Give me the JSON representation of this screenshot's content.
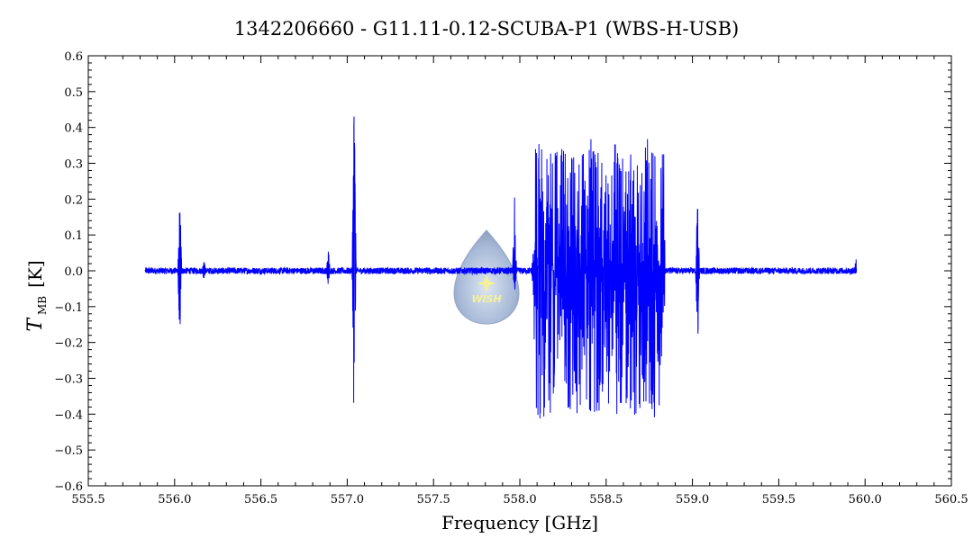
{
  "chart_data": {
    "type": "line",
    "title": "1342206660 - G11.11-0.12-SCUBA-P1 (WBS-H-USB)",
    "xlabel": "Frequency [GHz]",
    "ylabel_main": "T",
    "ylabel_sub": "MB",
    "ylabel_unit": "[K]",
    "xlim": [
      555.5,
      560.5
    ],
    "ylim": [
      -0.6,
      0.6
    ],
    "x_ticks": [
      "555.5",
      "556.0",
      "556.5",
      "557.0",
      "557.5",
      "558.0",
      "558.5",
      "559.0",
      "559.5",
      "560.0",
      "560.5"
    ],
    "y_ticks": [
      "0.6",
      "0.5",
      "0.4",
      "0.3",
      "0.2",
      "0.1",
      "0.0",
      "-0.1",
      "-0.2",
      "-0.3",
      "-0.4",
      "-0.5",
      "-0.6"
    ],
    "grid": false,
    "series_color": "#0000ff",
    "series": [
      {
        "x_range": [
          555.83,
          559.95
        ],
        "baseline": 0.0,
        "features": [
          {
            "center": 556.03,
            "min": -0.19,
            "max": 0.23
          },
          {
            "center": 556.17,
            "min": -0.03,
            "max": 0.03
          },
          {
            "center": 556.89,
            "min": -0.04,
            "max": 0.07
          },
          {
            "center": 557.04,
            "min": -0.49,
            "max": 0.53
          },
          {
            "center": 557.97,
            "min": -0.06,
            "max": 0.23
          },
          {
            "center": 558.08,
            "min": -0.08,
            "max": 0.1
          },
          {
            "range": [
              558.08,
              558.84
            ],
            "min": -0.4,
            "max": 0.36
          },
          {
            "center": 559.03,
            "min": -0.22,
            "max": 0.22
          },
          {
            "center": 559.95,
            "min": 0.0,
            "max": 0.06
          }
        ]
      }
    ]
  },
  "logo": {
    "text": "WISH"
  }
}
